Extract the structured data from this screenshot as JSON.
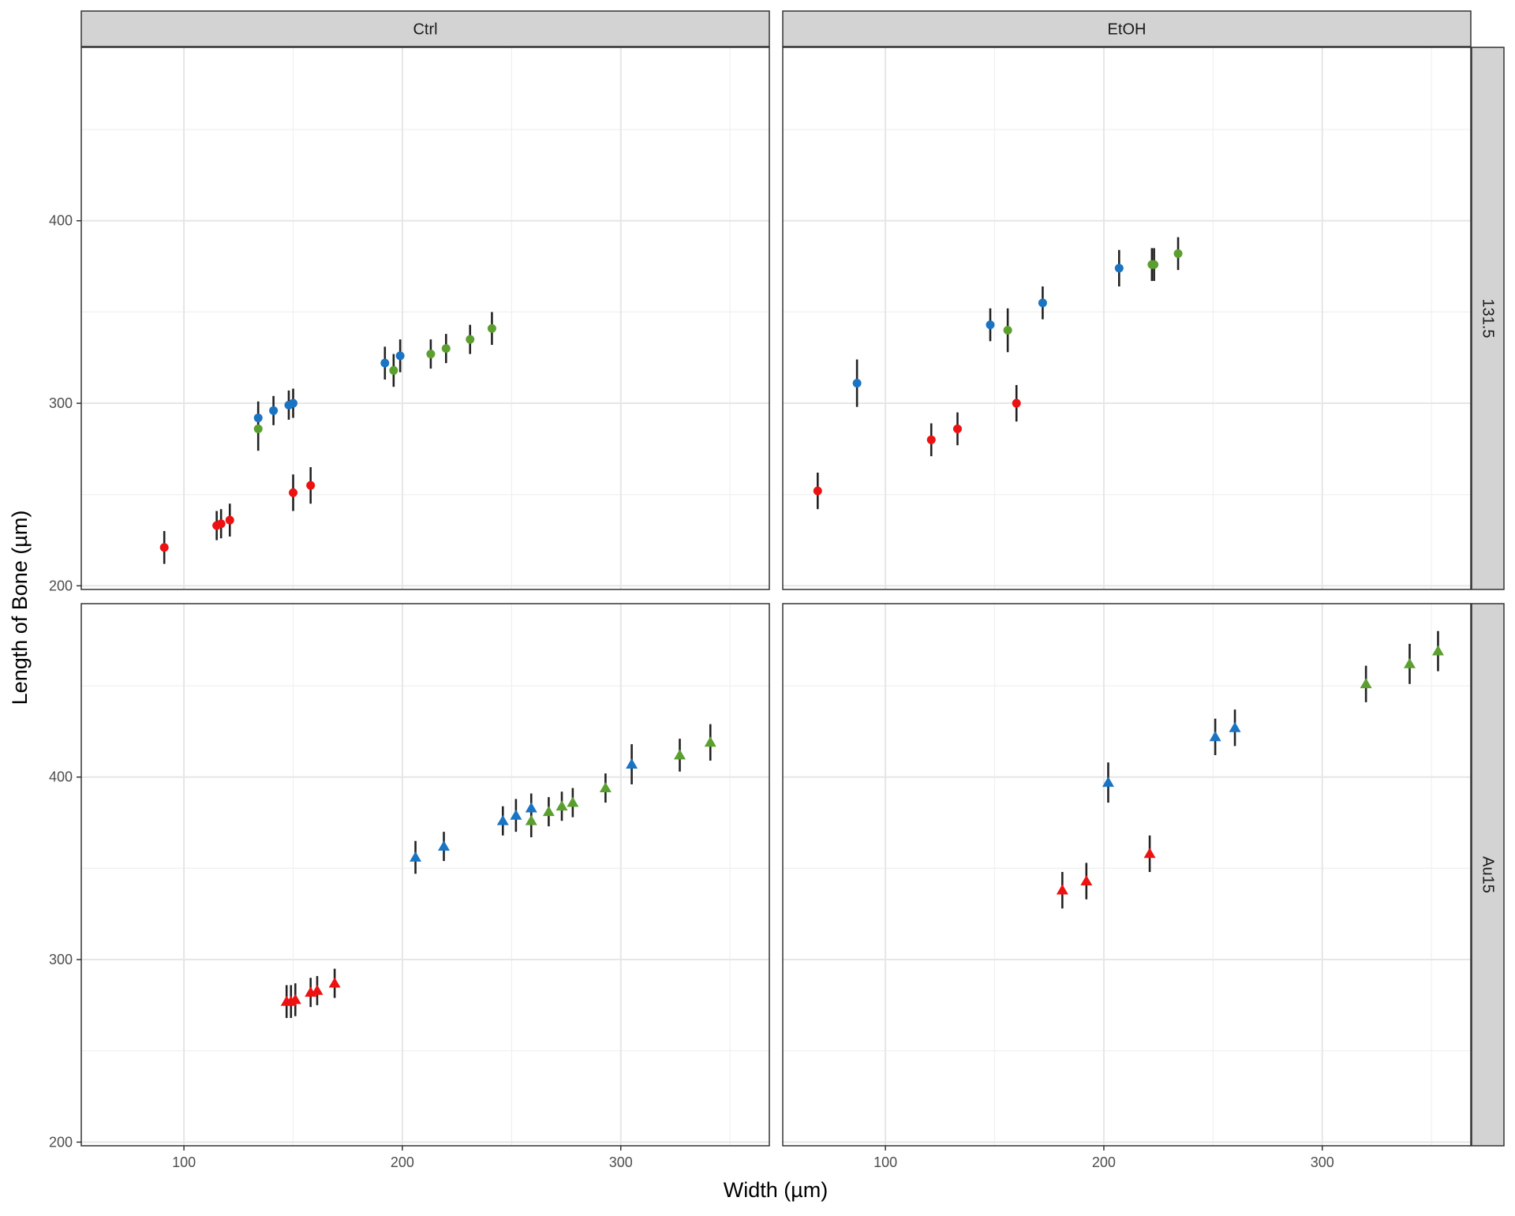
{
  "chart_data": {
    "type": "scatter",
    "xlabel": "Width (µm)",
    "ylabel": "Length of Bone (µm)",
    "xlim": [
      53,
      368
    ],
    "ylim": [
      198,
      495
    ],
    "x_ticks": [
      100,
      200,
      300
    ],
    "x_minor_ticks": [
      50,
      150,
      250,
      350
    ],
    "y_ticks": [
      200,
      300,
      400
    ],
    "y_minor_ticks": [
      250,
      350,
      450
    ],
    "grid": true,
    "facet_columns": [
      "Ctrl",
      "EtOH"
    ],
    "facet_rows": [
      "131.5",
      "Au15"
    ],
    "colors": {
      "red": "#ee1111",
      "blue": "#1a74c4",
      "green": "#5b9f2f",
      "errorbar": "#222222",
      "strip": "#d3d3d3",
      "grid": "#e6e6e6"
    },
    "panels": [
      {
        "column": "Ctrl",
        "row": "131.5",
        "shape": "circle",
        "points": [
          {
            "x": 91,
            "y": 221,
            "err": 9,
            "color": "red"
          },
          {
            "x": 115,
            "y": 233,
            "err": 8,
            "color": "red"
          },
          {
            "x": 117,
            "y": 234,
            "err": 8,
            "color": "red"
          },
          {
            "x": 121,
            "y": 236,
            "err": 9,
            "color": "red"
          },
          {
            "x": 150,
            "y": 251,
            "err": 10,
            "color": "red"
          },
          {
            "x": 158,
            "y": 255,
            "err": 10,
            "color": "red"
          },
          {
            "x": 134,
            "y": 286,
            "err": 12,
            "color": "green"
          },
          {
            "x": 134,
            "y": 292,
            "err": 9,
            "color": "blue"
          },
          {
            "x": 141,
            "y": 296,
            "err": 8,
            "color": "blue"
          },
          {
            "x": 148,
            "y": 299,
            "err": 8,
            "color": "blue"
          },
          {
            "x": 150,
            "y": 300,
            "err": 8,
            "color": "blue"
          },
          {
            "x": 192,
            "y": 322,
            "err": 9,
            "color": "blue"
          },
          {
            "x": 196,
            "y": 318,
            "err": 9,
            "color": "green"
          },
          {
            "x": 199,
            "y": 326,
            "err": 9,
            "color": "blue"
          },
          {
            "x": 213,
            "y": 327,
            "err": 8,
            "color": "green"
          },
          {
            "x": 220,
            "y": 330,
            "err": 8,
            "color": "green"
          },
          {
            "x": 231,
            "y": 335,
            "err": 8,
            "color": "green"
          },
          {
            "x": 241,
            "y": 341,
            "err": 9,
            "color": "green"
          }
        ]
      },
      {
        "column": "EtOH",
        "row": "131.5",
        "shape": "circle",
        "points": [
          {
            "x": 69,
            "y": 252,
            "err": 10,
            "color": "red"
          },
          {
            "x": 87,
            "y": 311,
            "err": 13,
            "color": "blue"
          },
          {
            "x": 121,
            "y": 280,
            "err": 9,
            "color": "red"
          },
          {
            "x": 133,
            "y": 286,
            "err": 9,
            "color": "red"
          },
          {
            "x": 148,
            "y": 343,
            "err": 9,
            "color": "blue"
          },
          {
            "x": 156,
            "y": 340,
            "err": 12,
            "color": "green"
          },
          {
            "x": 160,
            "y": 300,
            "err": 10,
            "color": "red"
          },
          {
            "x": 172,
            "y": 355,
            "err": 9,
            "color": "blue"
          },
          {
            "x": 207,
            "y": 374,
            "err": 10,
            "color": "blue"
          },
          {
            "x": 222,
            "y": 376,
            "err": 9,
            "color": "green"
          },
          {
            "x": 223,
            "y": 376,
            "err": 9,
            "color": "green"
          },
          {
            "x": 234,
            "y": 382,
            "err": 9,
            "color": "green"
          }
        ]
      },
      {
        "column": "Ctrl",
        "row": "Au15",
        "shape": "triangle",
        "points": [
          {
            "x": 147,
            "y": 277,
            "err": 9,
            "color": "red"
          },
          {
            "x": 149,
            "y": 277,
            "err": 9,
            "color": "red"
          },
          {
            "x": 151,
            "y": 278,
            "err": 9,
            "color": "red"
          },
          {
            "x": 158,
            "y": 282,
            "err": 8,
            "color": "red"
          },
          {
            "x": 161,
            "y": 283,
            "err": 8,
            "color": "red"
          },
          {
            "x": 169,
            "y": 287,
            "err": 8,
            "color": "red"
          },
          {
            "x": 206,
            "y": 356,
            "err": 9,
            "color": "blue"
          },
          {
            "x": 219,
            "y": 362,
            "err": 8,
            "color": "blue"
          },
          {
            "x": 246,
            "y": 376,
            "err": 8,
            "color": "blue"
          },
          {
            "x": 252,
            "y": 379,
            "err": 9,
            "color": "blue"
          },
          {
            "x": 259,
            "y": 383,
            "err": 8,
            "color": "blue"
          },
          {
            "x": 259,
            "y": 376,
            "err": 9,
            "color": "green"
          },
          {
            "x": 267,
            "y": 381,
            "err": 8,
            "color": "green"
          },
          {
            "x": 273,
            "y": 384,
            "err": 8,
            "color": "green"
          },
          {
            "x": 278,
            "y": 386,
            "err": 8,
            "color": "green"
          },
          {
            "x": 293,
            "y": 394,
            "err": 8,
            "color": "green"
          },
          {
            "x": 305,
            "y": 407,
            "err": 11,
            "color": "blue"
          },
          {
            "x": 327,
            "y": 412,
            "err": 9,
            "color": "green"
          },
          {
            "x": 341,
            "y": 419,
            "err": 10,
            "color": "green"
          }
        ]
      },
      {
        "column": "EtOH",
        "row": "Au15",
        "shape": "triangle",
        "points": [
          {
            "x": 181,
            "y": 338,
            "err": 10,
            "color": "red"
          },
          {
            "x": 192,
            "y": 343,
            "err": 10,
            "color": "red"
          },
          {
            "x": 202,
            "y": 397,
            "err": 11,
            "color": "blue"
          },
          {
            "x": 221,
            "y": 358,
            "err": 10,
            "color": "red"
          },
          {
            "x": 251,
            "y": 422,
            "err": 10,
            "color": "blue"
          },
          {
            "x": 260,
            "y": 427,
            "err": 10,
            "color": "blue"
          },
          {
            "x": 320,
            "y": 451,
            "err": 10,
            "color": "green"
          },
          {
            "x": 340,
            "y": 462,
            "err": 11,
            "color": "green"
          },
          {
            "x": 353,
            "y": 469,
            "err": 11,
            "color": "green"
          }
        ]
      }
    ]
  }
}
